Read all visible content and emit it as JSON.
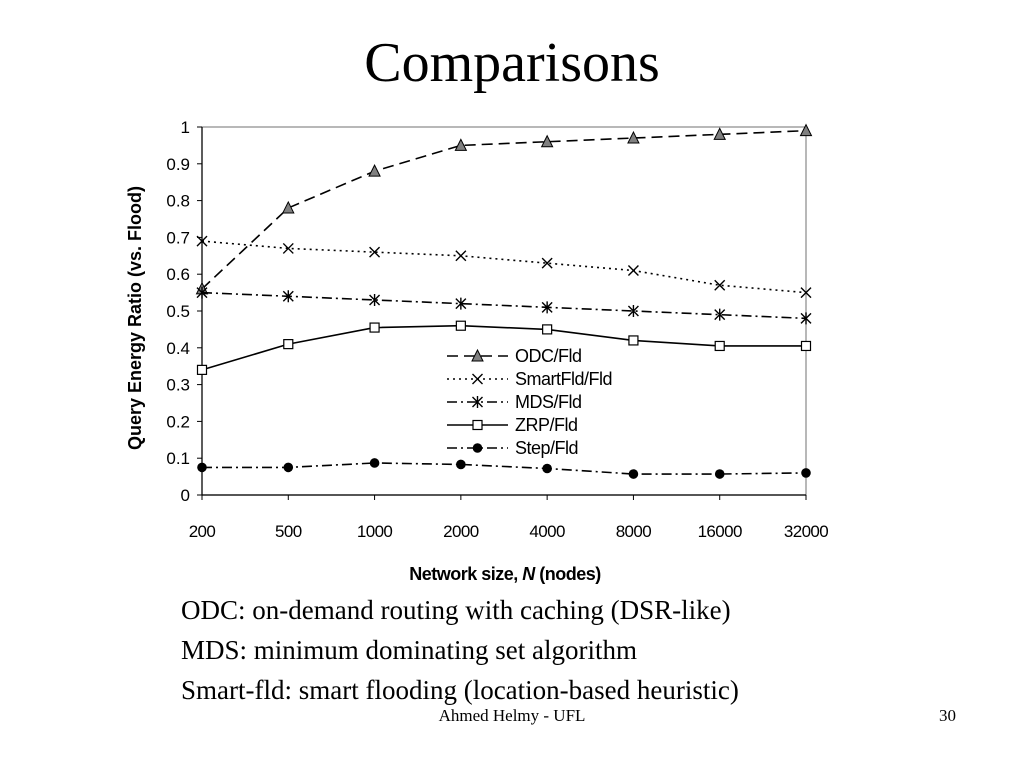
{
  "slide": {
    "title": "Comparisons",
    "notes": [
      "ODC: on-demand routing with caching (DSR-like)",
      "MDS: minimum dominating set algorithm",
      "Smart-fld: smart flooding (location-based heuristic)"
    ],
    "footer_author": "Ahmed Helmy - UFL",
    "page_number": "30"
  },
  "chart_data": {
    "type": "line",
    "title": "",
    "ylabel": "Query Energy Ratio (vs. Flood)",
    "xlabel_prefix": "Network size, ",
    "xlabel_var": "N",
    "xlabel_suffix": " (nodes)",
    "categories": [
      "200",
      "500",
      "1000",
      "2000",
      "4000",
      "8000",
      "16000",
      "32000"
    ],
    "ylim": [
      0,
      1
    ],
    "yticks": [
      "0",
      "0.1",
      "0.2",
      "0.3",
      "0.4",
      "0.5",
      "0.6",
      "0.7",
      "0.8",
      "0.9",
      "1"
    ],
    "grid": false,
    "legend_position": "center-right inside plot",
    "series": [
      {
        "name": "ODC/Fld",
        "marker": "triangle",
        "line": "long-dash",
        "values": [
          0.56,
          0.78,
          0.88,
          0.95,
          0.96,
          0.97,
          0.98,
          0.99
        ]
      },
      {
        "name": "SmartFld/Fld",
        "marker": "x",
        "line": "dotted",
        "values": [
          0.69,
          0.67,
          0.66,
          0.65,
          0.63,
          0.61,
          0.57,
          0.55
        ]
      },
      {
        "name": "MDS/Fld",
        "marker": "star",
        "line": "dash-dot",
        "values": [
          0.55,
          0.54,
          0.53,
          0.52,
          0.51,
          0.5,
          0.49,
          0.48
        ]
      },
      {
        "name": "ZRP/Fld",
        "marker": "square",
        "line": "solid",
        "values": [
          0.34,
          0.41,
          0.455,
          0.46,
          0.45,
          0.42,
          0.405,
          0.405
        ]
      },
      {
        "name": "Step/Fld",
        "marker": "circle",
        "line": "dash-dot",
        "values": [
          0.075,
          0.075,
          0.087,
          0.083,
          0.072,
          0.057,
          0.057,
          0.06
        ]
      }
    ],
    "marker_colors": {
      "triangle": "#808080",
      "square": "#ffffff",
      "circle": "#000000"
    }
  }
}
